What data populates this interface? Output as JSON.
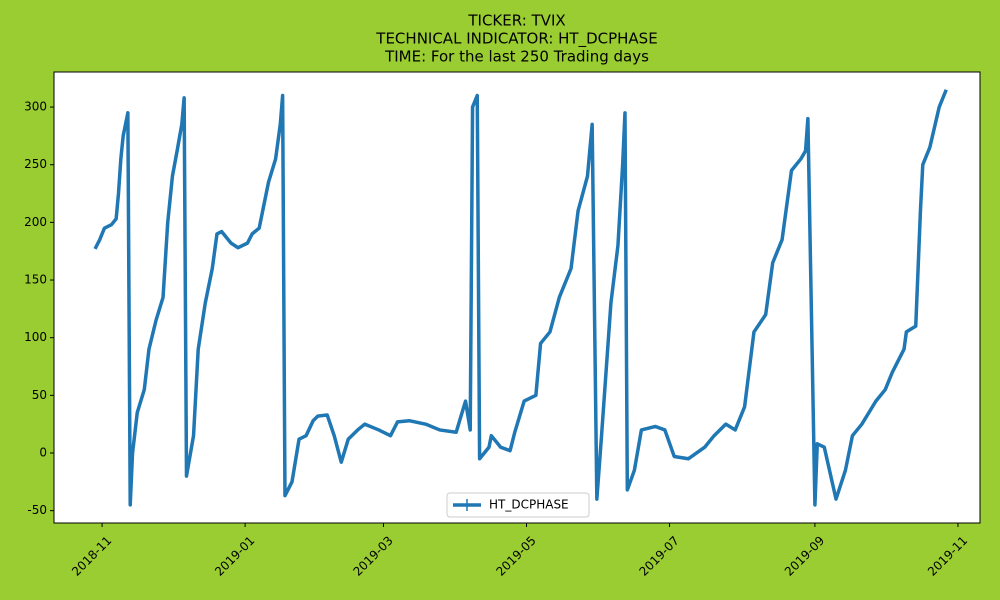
{
  "chart_data": {
    "type": "line",
    "title": [
      "TICKER:  TVIX",
      "TECHNICAL INDICATOR:  HT_DCPHASE",
      "TIME: For the last 250 Trading days"
    ],
    "x": [
      -3,
      -1,
      1,
      4,
      6,
      7,
      8,
      9,
      11,
      12,
      13,
      15,
      18,
      20,
      23,
      26,
      28,
      30,
      32,
      34,
      35,
      36,
      39,
      41,
      44,
      47,
      49,
      51,
      55,
      58,
      62,
      64,
      67,
      71,
      74,
      76,
      77,
      78,
      81,
      84,
      87,
      90,
      92,
      96,
      99,
      102,
      105,
      109,
      112,
      118,
      123,
      126,
      131,
      138,
      144,
      151,
      155,
      157,
      158,
      160,
      161,
      165,
      166,
      170,
      174,
      176,
      180,
      185,
      187,
      191,
      195,
      200,
      203,
      205,
      207,
      209,
      211,
      213,
      217,
      220,
      222,
      223,
      224,
      227,
      230,
      236,
      240,
      244,
      250,
      257,
      261,
      266,
      270,
      274,
      278,
      283,
      286,
      290,
      294,
      298,
      300,
      301,
      304,
      305,
      308,
      313,
      317,
      320,
      324,
      330,
      334,
      337,
      342,
      343,
      347,
      349,
      350,
      353,
      357,
      360
    ],
    "series": [
      {
        "name": "HT_DCPHASE",
        "color": "#1f77b4",
        "values": [
          177,
          185,
          195,
          198,
          203,
          225,
          255,
          275,
          295,
          -45,
          0,
          35,
          55,
          90,
          115,
          135,
          200,
          240,
          262,
          285,
          308,
          -20,
          15,
          90,
          130,
          160,
          190,
          192,
          182,
          178,
          182,
          190,
          195,
          235,
          255,
          285,
          310,
          -37,
          -25,
          12,
          15,
          28,
          32,
          33,
          15,
          -8,
          12,
          20,
          25,
          20,
          15,
          27,
          28,
          25,
          20,
          18,
          45,
          20,
          300,
          310,
          -5,
          5,
          15,
          5,
          2,
          18,
          45,
          50,
          95,
          105,
          135,
          160,
          210,
          225,
          240,
          285,
          -40,
          15,
          130,
          180,
          250,
          295,
          -32,
          -15,
          20,
          23,
          20,
          -3,
          -5,
          5,
          15,
          25,
          20,
          40,
          105,
          120,
          165,
          185,
          245,
          255,
          262,
          290,
          -45,
          8,
          5,
          -40,
          -15,
          15,
          25,
          45,
          55,
          70,
          90,
          105,
          110,
          210,
          250,
          265,
          300,
          315
        ]
      }
    ],
    "xlim": [
      -20.5,
      374.4
    ],
    "xticks": [
      {
        "value": 0,
        "label": "2018-11"
      },
      {
        "value": 61,
        "label": "2019-01"
      },
      {
        "value": 120,
        "label": "2019-03"
      },
      {
        "value": 181,
        "label": "2019-05"
      },
      {
        "value": 242,
        "label": "2019-07"
      },
      {
        "value": 304,
        "label": "2019-09"
      },
      {
        "value": 365,
        "label": "2019-11"
      }
    ],
    "ylim": [
      -60.7,
      330.4
    ],
    "yticks": [
      -50,
      0,
      50,
      100,
      150,
      200,
      250,
      300
    ],
    "legend": "lower center"
  }
}
